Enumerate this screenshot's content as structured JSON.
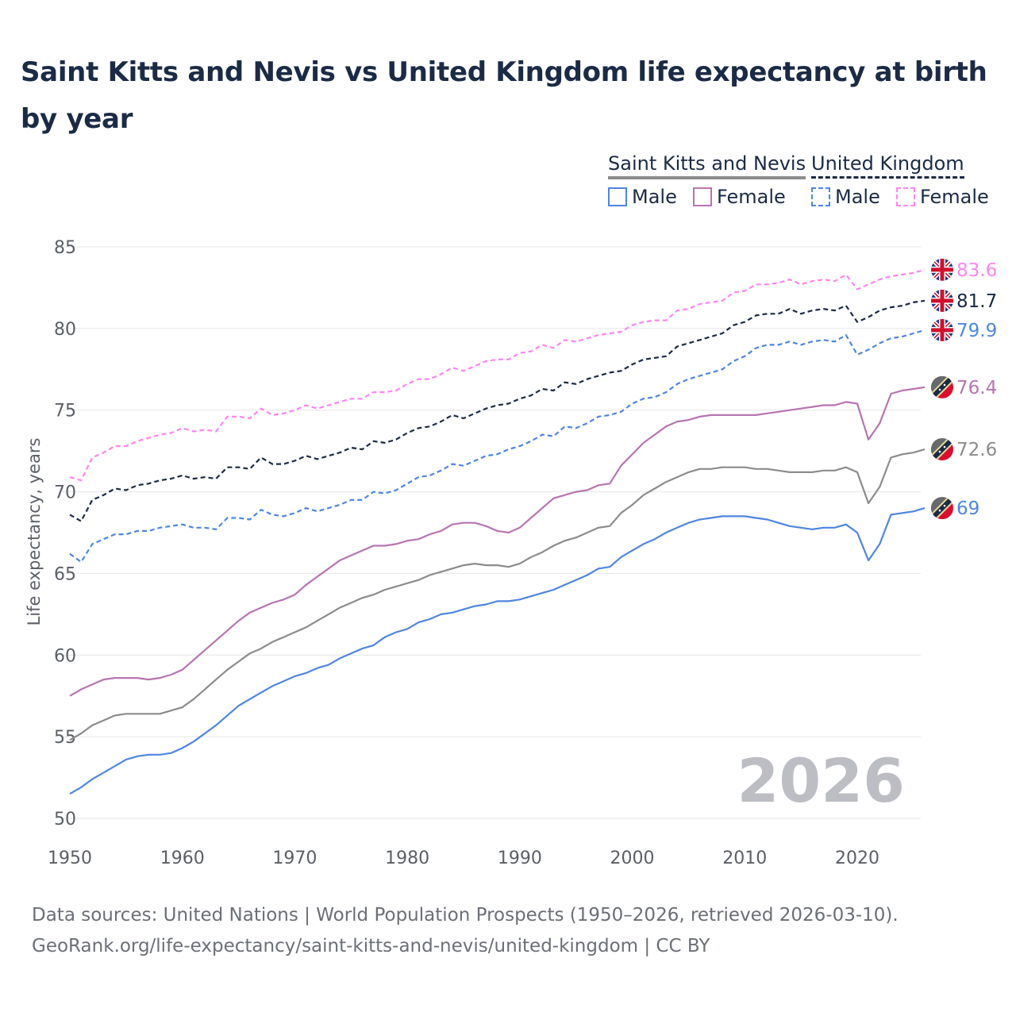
{
  "title": "Saint Kitts and Nevis vs United Kingdom life expectancy at birth by year",
  "legend": {
    "groups": [
      {
        "label": "Saint Kitts and Nevis",
        "color": "#8c8c8c"
      },
      {
        "label": "United Kingdom",
        "color": "#1c2b45"
      }
    ],
    "items": [
      {
        "label": "Male",
        "color": "#4f86e0",
        "dashed": false
      },
      {
        "label": "Female",
        "color": "#b875b0",
        "dashed": false
      },
      {
        "label": "Male",
        "color": "#4f86e0",
        "dashed": true
      },
      {
        "label": "Female",
        "color": "#ff85f0",
        "dashed": true
      }
    ]
  },
  "watermark_year": "2026",
  "footer": {
    "line1": "Data sources: United Nations | World Population Prospects (1950–2026, retrieved 2026-03-10).",
    "line2": "GeoRank.org/life-expectancy/saint-kitts-and-nevis/united-kingdom | CC BY"
  },
  "chart_data": {
    "type": "line",
    "title": "Saint Kitts and Nevis vs United Kingdom life expectancy at birth by year",
    "xlabel": "",
    "ylabel": "Life expectancy, years",
    "xlim": [
      1950,
      2026
    ],
    "ylim": [
      50,
      85
    ],
    "x_ticks": [
      "1950",
      "1960",
      "1970",
      "1980",
      "1990",
      "2000",
      "2010",
      "2020"
    ],
    "y_ticks": [
      "50",
      "55",
      "60",
      "65",
      "70",
      "75",
      "80",
      "85"
    ],
    "grid": true,
    "x_start": 1950,
    "series": [
      {
        "name": "United Kingdom Female",
        "color": "#ff85f0",
        "dashed": true,
        "flag": "uk",
        "end_label": "83.6",
        "values": [
          70.9,
          70.7,
          72.1,
          72.4,
          72.8,
          72.8,
          73.1,
          73.3,
          73.5,
          73.6,
          73.9,
          73.7,
          73.8,
          73.7,
          74.6,
          74.6,
          74.5,
          75.1,
          74.7,
          74.8,
          75.0,
          75.3,
          75.1,
          75.3,
          75.5,
          75.7,
          75.7,
          76.1,
          76.1,
          76.2,
          76.6,
          76.9,
          76.9,
          77.2,
          77.6,
          77.4,
          77.7,
          78.0,
          78.1,
          78.1,
          78.5,
          78.6,
          79.0,
          78.8,
          79.3,
          79.2,
          79.4,
          79.6,
          79.7,
          79.8,
          80.2,
          80.4,
          80.5,
          80.5,
          81.1,
          81.2,
          81.5,
          81.6,
          81.7,
          82.2,
          82.3,
          82.7,
          82.7,
          82.8,
          83.0,
          82.7,
          82.9,
          83.0,
          82.9,
          83.3,
          82.4,
          82.7,
          83.0,
          83.2,
          83.3,
          83.4,
          83.6
        ]
      },
      {
        "name": "United Kingdom",
        "color": "#1c2b45",
        "dashed": true,
        "flag": "uk",
        "end_label": "81.7",
        "values": [
          68.6,
          68.2,
          69.5,
          69.8,
          70.2,
          70.1,
          70.4,
          70.5,
          70.7,
          70.8,
          71.0,
          70.8,
          70.9,
          70.8,
          71.5,
          71.5,
          71.4,
          72.1,
          71.7,
          71.7,
          71.9,
          72.2,
          72.0,
          72.2,
          72.4,
          72.7,
          72.6,
          73.1,
          73.0,
          73.2,
          73.6,
          73.9,
          74.0,
          74.3,
          74.7,
          74.5,
          74.8,
          75.1,
          75.3,
          75.4,
          75.7,
          75.9,
          76.3,
          76.2,
          76.7,
          76.6,
          76.9,
          77.1,
          77.3,
          77.4,
          77.8,
          78.1,
          78.2,
          78.3,
          78.9,
          79.1,
          79.3,
          79.5,
          79.7,
          80.2,
          80.4,
          80.8,
          80.9,
          80.9,
          81.2,
          80.9,
          81.1,
          81.2,
          81.1,
          81.4,
          80.4,
          80.7,
          81.1,
          81.3,
          81.4,
          81.6,
          81.7
        ]
      },
      {
        "name": "United Kingdom Male",
        "color": "#4f86e0",
        "dashed": true,
        "flag": "uk",
        "end_label": "79.9",
        "values": [
          66.2,
          65.7,
          66.8,
          67.1,
          67.4,
          67.4,
          67.6,
          67.6,
          67.8,
          67.9,
          68.0,
          67.8,
          67.8,
          67.7,
          68.4,
          68.4,
          68.3,
          68.9,
          68.6,
          68.5,
          68.7,
          69.0,
          68.8,
          69.0,
          69.2,
          69.5,
          69.5,
          70.0,
          69.9,
          70.1,
          70.5,
          70.9,
          71.0,
          71.3,
          71.7,
          71.6,
          71.9,
          72.2,
          72.3,
          72.6,
          72.8,
          73.1,
          73.5,
          73.4,
          74.0,
          73.9,
          74.2,
          74.6,
          74.7,
          74.9,
          75.4,
          75.7,
          75.8,
          76.1,
          76.6,
          76.9,
          77.1,
          77.3,
          77.5,
          78.0,
          78.3,
          78.8,
          79.0,
          79.0,
          79.2,
          79.0,
          79.2,
          79.3,
          79.2,
          79.6,
          78.4,
          78.7,
          79.1,
          79.4,
          79.5,
          79.7,
          79.9
        ]
      },
      {
        "name": "Saint Kitts and Nevis Female",
        "color": "#b875b0",
        "dashed": false,
        "flag": "skn",
        "end_label": "76.4",
        "values": [
          57.5,
          57.9,
          58.2,
          58.5,
          58.6,
          58.6,
          58.6,
          58.5,
          58.6,
          58.8,
          59.1,
          59.7,
          60.3,
          60.9,
          61.5,
          62.1,
          62.6,
          62.9,
          63.2,
          63.4,
          63.7,
          64.3,
          64.8,
          65.3,
          65.8,
          66.1,
          66.4,
          66.7,
          66.7,
          66.8,
          67.0,
          67.1,
          67.4,
          67.6,
          68.0,
          68.1,
          68.1,
          67.9,
          67.6,
          67.5,
          67.8,
          68.4,
          69.0,
          69.6,
          69.8,
          70.0,
          70.1,
          70.4,
          70.5,
          71.6,
          72.3,
          73.0,
          73.5,
          74.0,
          74.3,
          74.4,
          74.6,
          74.7,
          74.7,
          74.7,
          74.7,
          74.7,
          74.8,
          74.9,
          75.0,
          75.1,
          75.2,
          75.3,
          75.3,
          75.5,
          75.4,
          73.2,
          74.2,
          76.0,
          76.2,
          76.3,
          76.4
        ]
      },
      {
        "name": "Saint Kitts and Nevis",
        "color": "#8c8c8c",
        "dashed": false,
        "flag": "skn",
        "end_label": "72.6",
        "values": [
          54.8,
          55.2,
          55.7,
          56.0,
          56.3,
          56.4,
          56.4,
          56.4,
          56.4,
          56.6,
          56.8,
          57.3,
          57.9,
          58.5,
          59.1,
          59.6,
          60.1,
          60.4,
          60.8,
          61.1,
          61.4,
          61.7,
          62.1,
          62.5,
          62.9,
          63.2,
          63.5,
          63.7,
          64.0,
          64.2,
          64.4,
          64.6,
          64.9,
          65.1,
          65.3,
          65.5,
          65.6,
          65.5,
          65.5,
          65.4,
          65.6,
          66.0,
          66.3,
          66.7,
          67.0,
          67.2,
          67.5,
          67.8,
          67.9,
          68.7,
          69.2,
          69.8,
          70.2,
          70.6,
          70.9,
          71.2,
          71.4,
          71.4,
          71.5,
          71.5,
          71.5,
          71.4,
          71.4,
          71.3,
          71.2,
          71.2,
          71.2,
          71.3,
          71.3,
          71.5,
          71.2,
          69.3,
          70.3,
          72.1,
          72.3,
          72.4,
          72.6
        ]
      },
      {
        "name": "Saint Kitts and Nevis Male",
        "color": "#4f86e0",
        "dashed": false,
        "flag": "skn",
        "end_label": "69",
        "values": [
          51.5,
          51.9,
          52.4,
          52.8,
          53.2,
          53.6,
          53.8,
          53.9,
          53.9,
          54.0,
          54.3,
          54.7,
          55.2,
          55.7,
          56.3,
          56.9,
          57.3,
          57.7,
          58.1,
          58.4,
          58.7,
          58.9,
          59.2,
          59.4,
          59.8,
          60.1,
          60.4,
          60.6,
          61.1,
          61.4,
          61.6,
          62.0,
          62.2,
          62.5,
          62.6,
          62.8,
          63.0,
          63.1,
          63.3,
          63.3,
          63.4,
          63.6,
          63.8,
          64.0,
          64.3,
          64.6,
          64.9,
          65.3,
          65.4,
          66.0,
          66.4,
          66.8,
          67.1,
          67.5,
          67.8,
          68.1,
          68.3,
          68.4,
          68.5,
          68.5,
          68.5,
          68.4,
          68.3,
          68.1,
          67.9,
          67.8,
          67.7,
          67.8,
          67.8,
          68.0,
          67.5,
          65.8,
          66.8,
          68.6,
          68.7,
          68.8,
          69.0
        ]
      }
    ]
  }
}
